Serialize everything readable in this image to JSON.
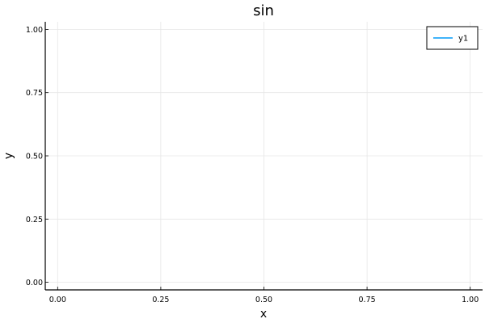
{
  "chart_data": {
    "type": "line",
    "title": "sin",
    "xlabel": "x",
    "ylabel": "y",
    "xlim": [
      -0.03,
      1.03
    ],
    "ylim": [
      -0.03,
      1.03
    ],
    "x_ticks": [
      0.0,
      0.25,
      0.5,
      0.75,
      1.0
    ],
    "x_tick_labels": [
      "0.00",
      "0.25",
      "0.50",
      "0.75",
      "1.00"
    ],
    "y_ticks": [
      0.0,
      0.25,
      0.5,
      0.75,
      1.0
    ],
    "y_tick_labels": [
      "0.00",
      "0.25",
      "0.50",
      "0.75",
      "1.00"
    ],
    "grid": true,
    "legend_position": "top-right",
    "series": [
      {
        "name": "y1",
        "x": [],
        "y": [],
        "color": "#009AF9"
      }
    ]
  }
}
